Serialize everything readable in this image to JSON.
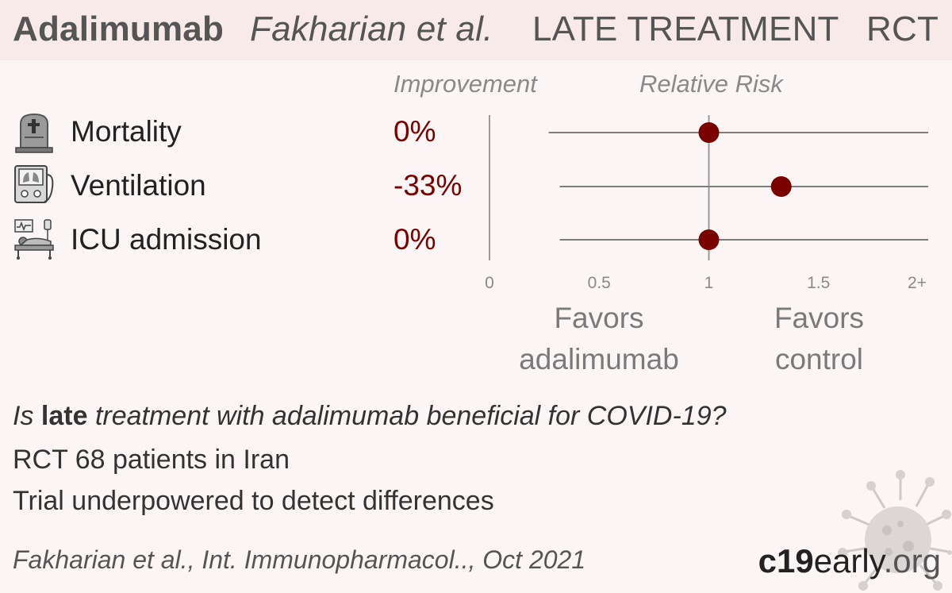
{
  "header": {
    "drug": "Adalimumab",
    "study": "Fakharian et al.",
    "treatment": "LATE TREATMENT",
    "design": "RCT"
  },
  "columns": {
    "improvement": "Improvement",
    "relative_risk": "Relative Risk"
  },
  "icons": {
    "mortality": "tombstone-icon",
    "ventilation": "ventilator-icon",
    "icu": "icu-bed-icon"
  },
  "favors": {
    "left_line1": "Favors",
    "left_line2": "adalimumab",
    "right_line1": "Favors",
    "right_line2": "control"
  },
  "question": {
    "prefix": "Is ",
    "emphasis": "late",
    "suffix": " treatment with adalimumab beneficial for COVID-19?"
  },
  "summary": {
    "line1": "RCT 68 patients in Iran",
    "line2": "Trial underpowered to detect differences"
  },
  "citation": "Fakharian et al., Int. Immunopharmacol.., Oct 2021",
  "brand": {
    "part1": "c19",
    "part2": "early",
    "part3": ".org"
  },
  "colors": {
    "point": "#7a0000",
    "value_text": "#7a0000",
    "header_bg": "#f7eae9",
    "background": "#fbf5f5"
  },
  "chart_data": {
    "type": "scatter",
    "categories": [
      "Mortality",
      "Ventilation",
      "ICU admission"
    ],
    "improvement_labels": [
      "0%",
      "-33%",
      "0%"
    ],
    "series": [
      {
        "values": [
          1.0,
          1.33,
          1.0
        ],
        "ci_lower": [
          0.27,
          0.32,
          0.32
        ],
        "ci_upper": [
          2.0,
          2.0,
          2.0
        ]
      }
    ],
    "xlabel": "",
    "x_ticks": [
      "0",
      "0.5",
      "1",
      "1.5",
      "2+"
    ],
    "xlim": [
      0,
      2
    ],
    "reference_line": 1
  }
}
